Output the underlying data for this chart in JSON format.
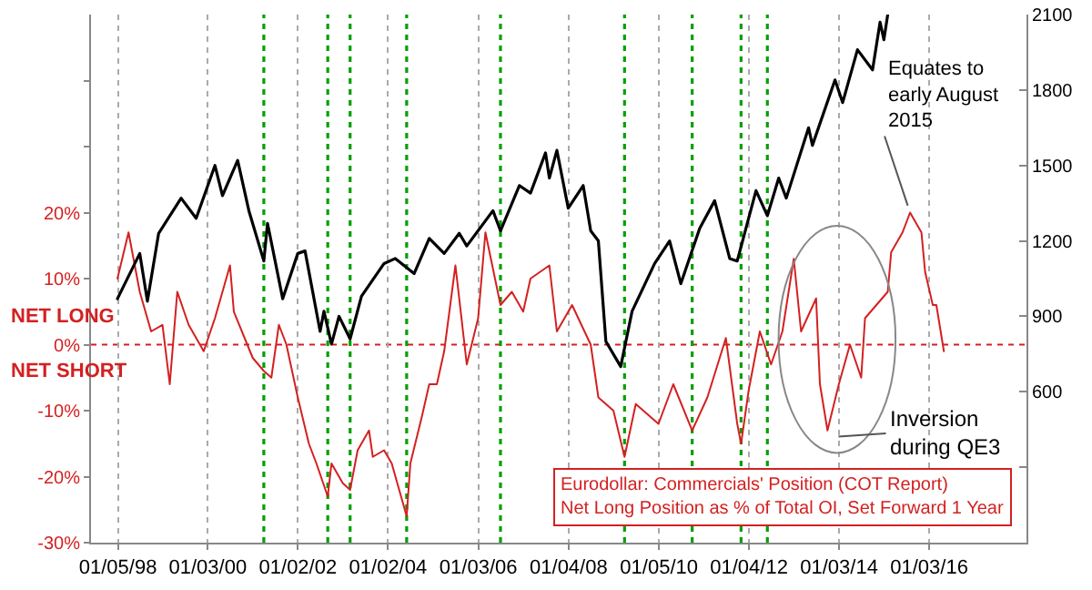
{
  "chart_data": {
    "type": "line",
    "grid": "x",
    "line_style": "solid",
    "marker": "none",
    "xlim": [
      "1997-06",
      "2018-03"
    ],
    "xticks": [
      {
        "value": "1998-01-05",
        "label": "01/05/98"
      },
      {
        "value": "2000-01-03",
        "label": "01/03/00"
      },
      {
        "value": "2002-01-02",
        "label": "01/02/02"
      },
      {
        "value": "2004-01-02",
        "label": "01/02/04"
      },
      {
        "value": "2006-01-03",
        "label": "01/03/06"
      },
      {
        "value": "2008-01-04",
        "label": "01/04/08"
      },
      {
        "value": "2010-01-05",
        "label": "01/05/10"
      },
      {
        "value": "2012-01-04",
        "label": "01/04/12"
      },
      {
        "value": "2014-01-03",
        "label": "01/03/14"
      },
      {
        "value": "2016-01-03",
        "label": "01/03/16"
      }
    ],
    "ylim": [
      -30,
      50
    ],
    "yticks": [
      {
        "value": -30,
        "label": "-30%"
      },
      {
        "value": -20,
        "label": "-20%"
      },
      {
        "value": -10,
        "label": "-10%"
      },
      {
        "value": 0,
        "label": "0%"
      },
      {
        "value": 10,
        "label": "10%"
      },
      {
        "value": 20,
        "label": "20%"
      },
      {
        "value": 30,
        "label": null
      },
      {
        "value": 40,
        "label": null
      }
    ],
    "y2lim": [
      0,
      2100
    ],
    "y2ticks": [
      {
        "value": 300,
        "label": null
      },
      600,
      900,
      1200,
      1500,
      1800,
      2100
    ],
    "series": [
      {
        "color": "#d42020",
        "x": [
          "1998-01",
          "1998-04",
          "1998-07",
          "1998-10",
          "1999-01",
          "1999-03",
          "1999-05",
          "1999-08",
          "1999-12",
          "2000-03",
          "2000-07",
          "2000-08",
          "2001-01",
          "2001-04",
          "2001-06",
          "2001-08",
          "2001-10",
          "2002-01",
          "2002-04",
          "2002-06",
          "2002-09",
          "2002-10",
          "2003-01",
          "2003-03",
          "2003-05",
          "2003-08",
          "2003-09",
          "2003-12",
          "2004-02",
          "2004-06",
          "2004-07",
          "2004-10",
          "2004-12",
          "2005-02",
          "2005-04",
          "2005-07",
          "2005-10",
          "2006-01",
          "2006-03",
          "2006-07",
          "2006-10",
          "2007-01",
          "2007-03",
          "2007-08",
          "2007-10",
          "2008-02",
          "2008-07",
          "2008-09",
          "2009-01",
          "2009-04",
          "2009-07",
          "2010-01",
          "2010-05",
          "2010-10",
          "2011-02",
          "2011-07",
          "2011-10",
          "2011-11",
          "2012-01",
          "2012-04",
          "2012-07",
          "2012-10",
          "2013-01",
          "2013-03",
          "2013-07",
          "2013-08",
          "2013-10",
          "2014-01",
          "2014-04",
          "2014-07",
          "2014-08",
          "2015-02",
          "2015-03",
          "2015-06",
          "2015-08",
          "2015-11",
          "2015-12",
          "2016-02",
          "2016-03",
          "2016-05"
        ],
        "values": [
          10,
          17,
          8,
          2,
          3,
          -6,
          8,
          3,
          -1,
          4,
          12,
          5,
          -2,
          -4,
          -5,
          3,
          0,
          -8,
          -15,
          -18,
          -23,
          -18,
          -21,
          -22,
          -16,
          -13,
          -17,
          -16,
          -18,
          -26,
          -18,
          -11,
          -6,
          -6,
          -1,
          12,
          -3,
          4,
          17,
          6,
          8,
          5,
          10,
          12,
          2,
          6,
          0,
          -8,
          -10,
          -17,
          -9,
          -12,
          -6,
          -13,
          -8,
          1,
          -12,
          -15,
          -7,
          2,
          -3,
          2,
          13,
          2,
          7,
          -6,
          -13,
          -6,
          0,
          -5,
          4,
          8,
          14,
          17,
          20,
          17,
          11,
          6,
          6,
          -1
        ]
      },
      {
        "color": "#000000",
        "axis": "y2",
        "x": [
          "1998-01",
          "1998-07",
          "1998-09",
          "1998-12",
          "1999-06",
          "1999-10",
          "2000-03",
          "2000-05",
          "2000-09",
          "2000-12",
          "2001-04",
          "2001-05",
          "2001-09",
          "2002-01",
          "2002-03",
          "2002-07",
          "2002-08",
          "2002-10",
          "2002-12",
          "2003-03",
          "2003-06",
          "2003-12",
          "2004-03",
          "2004-08",
          "2004-12",
          "2005-04",
          "2005-08",
          "2005-10",
          "2006-05",
          "2006-07",
          "2006-12",
          "2007-03",
          "2007-07",
          "2007-08",
          "2007-10",
          "2008-01",
          "2008-05",
          "2008-07",
          "2008-09",
          "2008-11",
          "2009-03",
          "2009-06",
          "2009-12",
          "2010-04",
          "2010-07",
          "2010-12",
          "2011-04",
          "2011-08",
          "2011-10",
          "2012-03",
          "2012-06",
          "2012-09",
          "2012-11",
          "2013-05",
          "2013-06",
          "2013-12",
          "2014-02",
          "2014-06",
          "2014-10",
          "2014-12",
          "2015-01",
          "2015-02"
        ],
        "values": [
          970,
          1150,
          960,
          1230,
          1370,
          1290,
          1500,
          1380,
          1520,
          1320,
          1120,
          1270,
          970,
          1150,
          1160,
          840,
          920,
          790,
          900,
          810,
          980,
          1110,
          1130,
          1070,
          1210,
          1150,
          1230,
          1180,
          1320,
          1240,
          1420,
          1390,
          1550,
          1450,
          1560,
          1330,
          1420,
          1240,
          1200,
          800,
          700,
          920,
          1110,
          1200,
          1030,
          1250,
          1360,
          1130,
          1120,
          1400,
          1300,
          1450,
          1370,
          1650,
          1580,
          1840,
          1750,
          1960,
          1880,
          2070,
          2000,
          2100
        ]
      }
    ],
    "ref_lines": [
      {
        "axis": "y",
        "value": 0,
        "color": "#d42020",
        "line_style": "dotted"
      },
      {
        "axis": "x",
        "value": "2001-04",
        "color": "#00a000",
        "line_style": "dotted"
      },
      {
        "axis": "x",
        "value": "2002-09",
        "color": "#00a000",
        "line_style": "dotted"
      },
      {
        "axis": "x",
        "value": "2003-03",
        "color": "#00a000",
        "line_style": "dotted"
      },
      {
        "axis": "x",
        "value": "2004-06",
        "color": "#00a000",
        "line_style": "dotted"
      },
      {
        "axis": "x",
        "value": "2006-07",
        "color": "#00a000",
        "line_style": "dotted"
      },
      {
        "axis": "x",
        "value": "2009-04",
        "color": "#00a000",
        "line_style": "dotted"
      },
      {
        "axis": "x",
        "value": "2010-10",
        "color": "#00a000",
        "line_style": "dotted"
      },
      {
        "axis": "x",
        "value": "2011-11",
        "color": "#00a000",
        "line_style": "dotted"
      },
      {
        "axis": "x",
        "value": "2012-06",
        "color": "#00a000",
        "line_style": "dotted"
      }
    ],
    "annotations": [
      "NET LONG",
      "NET SHORT",
      "Eurodollar: Commercials' Position (COT Report)\nNet Long Position as % of Total OI, Set Forward 1 Year",
      {
        "text": "Equates to\nearly August\n2015",
        "x": "2015-08",
        "y": 20
      },
      {
        "text": "Inversion\nduring QE3",
        "x": "2013-11",
        "y": -14
      }
    ]
  }
}
